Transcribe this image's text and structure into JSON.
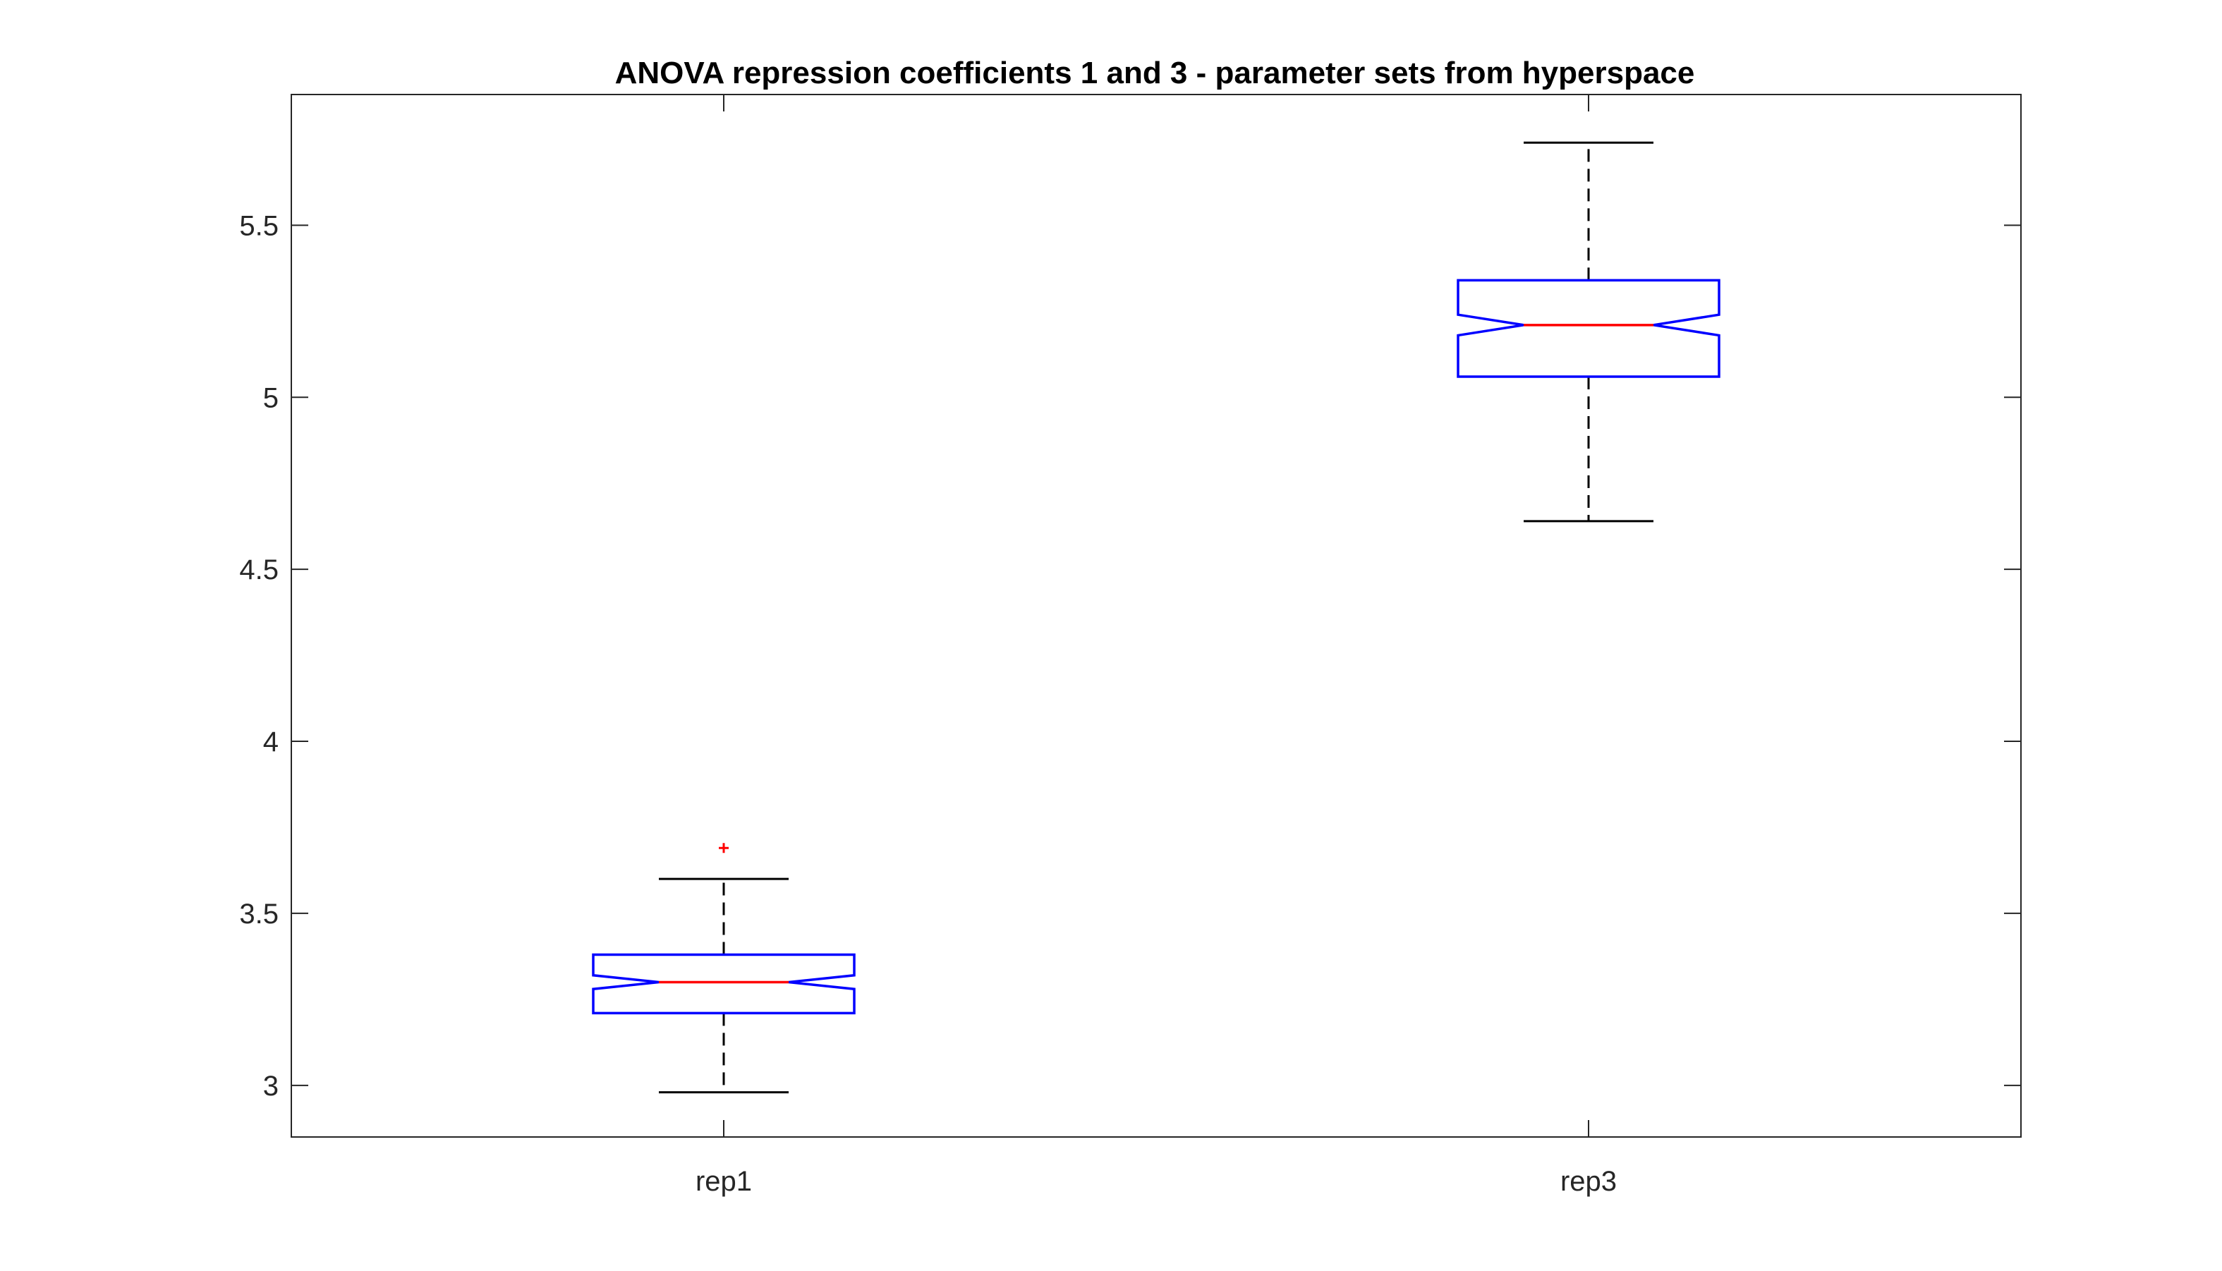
{
  "chart_data": {
    "type": "boxplot",
    "title": "ANOVA repression coefficients 1 and 3 - parameter sets from hyperspace",
    "xlabel": "",
    "ylabel": "",
    "categories": [
      "rep1",
      "rep3"
    ],
    "ylim": [
      2.85,
      5.88
    ],
    "yticks": [
      3,
      3.5,
      4,
      4.5,
      5,
      5.5
    ],
    "ytick_labels": [
      "3",
      "3.5",
      "4",
      "4.5",
      "5",
      "5.5"
    ],
    "notched": true,
    "grid": false,
    "boxes": [
      {
        "category": "rep1",
        "whisker_low": 2.98,
        "q1": 3.21,
        "notch_low": 3.28,
        "median": 3.3,
        "notch_high": 3.32,
        "q3": 3.38,
        "whisker_high": 3.6,
        "outliers": [
          3.69
        ]
      },
      {
        "category": "rep3",
        "whisker_low": 4.64,
        "q1": 5.06,
        "notch_low": 5.18,
        "median": 5.21,
        "notch_high": 5.24,
        "q3": 5.34,
        "whisker_high": 5.74,
        "outliers": []
      }
    ],
    "colors": {
      "box": "#0000ff",
      "median": "#ff0000",
      "whisker": "#000000",
      "outlier": "#ff0000",
      "axes": "#262626"
    }
  }
}
